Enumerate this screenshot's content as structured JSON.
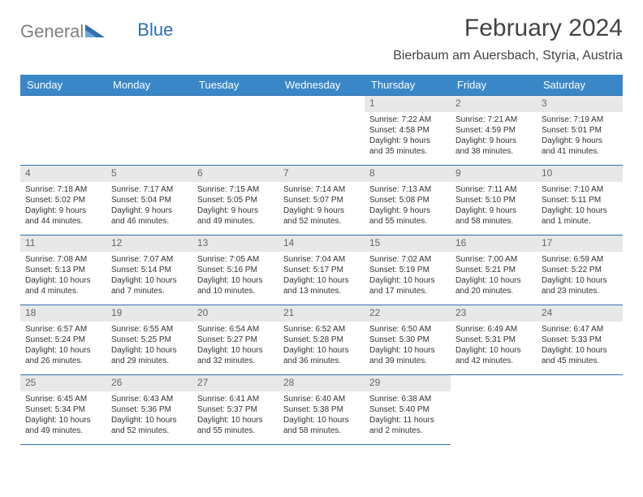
{
  "logo": {
    "part1": "General",
    "part2": "Blue"
  },
  "title": "February 2024",
  "location": "Bierbaum am Auersbach, Styria, Austria",
  "week_header_bg": "#3a87c8",
  "border_color": "#2f6fb0",
  "daynum_bg": "#e8e8e8",
  "text_color": "#333333",
  "weekdays": [
    "Sunday",
    "Monday",
    "Tuesday",
    "Wednesday",
    "Thursday",
    "Friday",
    "Saturday"
  ],
  "leading_blanks": 4,
  "days": [
    {
      "n": "1",
      "sunrise": "Sunrise: 7:22 AM",
      "sunset": "Sunset: 4:58 PM",
      "daylight": "Daylight: 9 hours and 35 minutes."
    },
    {
      "n": "2",
      "sunrise": "Sunrise: 7:21 AM",
      "sunset": "Sunset: 4:59 PM",
      "daylight": "Daylight: 9 hours and 38 minutes."
    },
    {
      "n": "3",
      "sunrise": "Sunrise: 7:19 AM",
      "sunset": "Sunset: 5:01 PM",
      "daylight": "Daylight: 9 hours and 41 minutes."
    },
    {
      "n": "4",
      "sunrise": "Sunrise: 7:18 AM",
      "sunset": "Sunset: 5:02 PM",
      "daylight": "Daylight: 9 hours and 44 minutes."
    },
    {
      "n": "5",
      "sunrise": "Sunrise: 7:17 AM",
      "sunset": "Sunset: 5:04 PM",
      "daylight": "Daylight: 9 hours and 46 minutes."
    },
    {
      "n": "6",
      "sunrise": "Sunrise: 7:15 AM",
      "sunset": "Sunset: 5:05 PM",
      "daylight": "Daylight: 9 hours and 49 minutes."
    },
    {
      "n": "7",
      "sunrise": "Sunrise: 7:14 AM",
      "sunset": "Sunset: 5:07 PM",
      "daylight": "Daylight: 9 hours and 52 minutes."
    },
    {
      "n": "8",
      "sunrise": "Sunrise: 7:13 AM",
      "sunset": "Sunset: 5:08 PM",
      "daylight": "Daylight: 9 hours and 55 minutes."
    },
    {
      "n": "9",
      "sunrise": "Sunrise: 7:11 AM",
      "sunset": "Sunset: 5:10 PM",
      "daylight": "Daylight: 9 hours and 58 minutes."
    },
    {
      "n": "10",
      "sunrise": "Sunrise: 7:10 AM",
      "sunset": "Sunset: 5:11 PM",
      "daylight": "Daylight: 10 hours and 1 minute."
    },
    {
      "n": "11",
      "sunrise": "Sunrise: 7:08 AM",
      "sunset": "Sunset: 5:13 PM",
      "daylight": "Daylight: 10 hours and 4 minutes."
    },
    {
      "n": "12",
      "sunrise": "Sunrise: 7:07 AM",
      "sunset": "Sunset: 5:14 PM",
      "daylight": "Daylight: 10 hours and 7 minutes."
    },
    {
      "n": "13",
      "sunrise": "Sunrise: 7:05 AM",
      "sunset": "Sunset: 5:16 PM",
      "daylight": "Daylight: 10 hours and 10 minutes."
    },
    {
      "n": "14",
      "sunrise": "Sunrise: 7:04 AM",
      "sunset": "Sunset: 5:17 PM",
      "daylight": "Daylight: 10 hours and 13 minutes."
    },
    {
      "n": "15",
      "sunrise": "Sunrise: 7:02 AM",
      "sunset": "Sunset: 5:19 PM",
      "daylight": "Daylight: 10 hours and 17 minutes."
    },
    {
      "n": "16",
      "sunrise": "Sunrise: 7:00 AM",
      "sunset": "Sunset: 5:21 PM",
      "daylight": "Daylight: 10 hours and 20 minutes."
    },
    {
      "n": "17",
      "sunrise": "Sunrise: 6:59 AM",
      "sunset": "Sunset: 5:22 PM",
      "daylight": "Daylight: 10 hours and 23 minutes."
    },
    {
      "n": "18",
      "sunrise": "Sunrise: 6:57 AM",
      "sunset": "Sunset: 5:24 PM",
      "daylight": "Daylight: 10 hours and 26 minutes."
    },
    {
      "n": "19",
      "sunrise": "Sunrise: 6:55 AM",
      "sunset": "Sunset: 5:25 PM",
      "daylight": "Daylight: 10 hours and 29 minutes."
    },
    {
      "n": "20",
      "sunrise": "Sunrise: 6:54 AM",
      "sunset": "Sunset: 5:27 PM",
      "daylight": "Daylight: 10 hours and 32 minutes."
    },
    {
      "n": "21",
      "sunrise": "Sunrise: 6:52 AM",
      "sunset": "Sunset: 5:28 PM",
      "daylight": "Daylight: 10 hours and 36 minutes."
    },
    {
      "n": "22",
      "sunrise": "Sunrise: 6:50 AM",
      "sunset": "Sunset: 5:30 PM",
      "daylight": "Daylight: 10 hours and 39 minutes."
    },
    {
      "n": "23",
      "sunrise": "Sunrise: 6:49 AM",
      "sunset": "Sunset: 5:31 PM",
      "daylight": "Daylight: 10 hours and 42 minutes."
    },
    {
      "n": "24",
      "sunrise": "Sunrise: 6:47 AM",
      "sunset": "Sunset: 5:33 PM",
      "daylight": "Daylight: 10 hours and 45 minutes."
    },
    {
      "n": "25",
      "sunrise": "Sunrise: 6:45 AM",
      "sunset": "Sunset: 5:34 PM",
      "daylight": "Daylight: 10 hours and 49 minutes."
    },
    {
      "n": "26",
      "sunrise": "Sunrise: 6:43 AM",
      "sunset": "Sunset: 5:36 PM",
      "daylight": "Daylight: 10 hours and 52 minutes."
    },
    {
      "n": "27",
      "sunrise": "Sunrise: 6:41 AM",
      "sunset": "Sunset: 5:37 PM",
      "daylight": "Daylight: 10 hours and 55 minutes."
    },
    {
      "n": "28",
      "sunrise": "Sunrise: 6:40 AM",
      "sunset": "Sunset: 5:38 PM",
      "daylight": "Daylight: 10 hours and 58 minutes."
    },
    {
      "n": "29",
      "sunrise": "Sunrise: 6:38 AM",
      "sunset": "Sunset: 5:40 PM",
      "daylight": "Daylight: 11 hours and 2 minutes."
    }
  ]
}
